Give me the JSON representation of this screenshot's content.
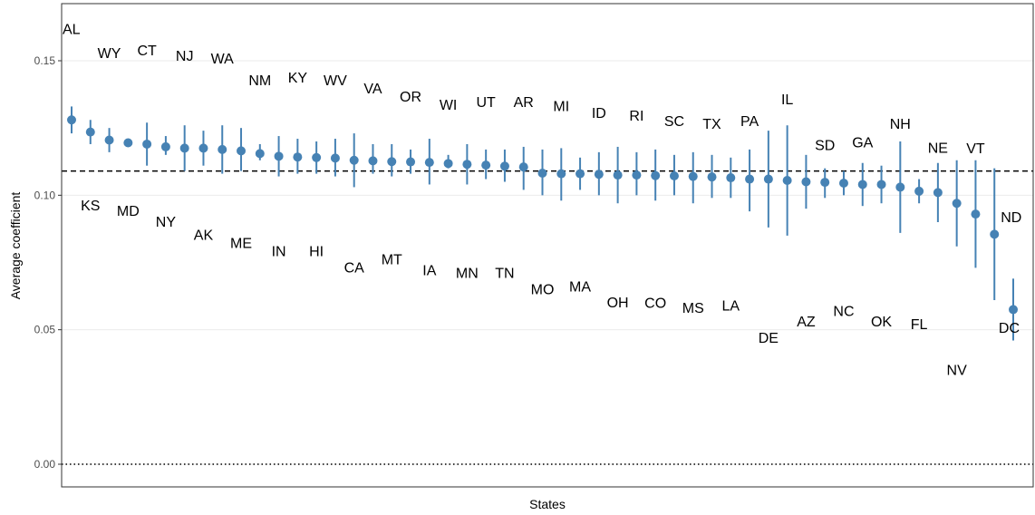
{
  "chart_data": {
    "type": "scatter",
    "xlabel": "States",
    "ylabel": "Average coefficient",
    "ylim": [
      -0.02,
      0.172
    ],
    "yticks": [
      0.0,
      0.05,
      0.1,
      0.15
    ],
    "ytick_labels": [
      "0.00",
      "0.05",
      "0.10",
      "0.15"
    ],
    "reference_lines": [
      {
        "y": 0.109,
        "style": "dashed"
      },
      {
        "y": 0.0,
        "style": "dotted"
      }
    ],
    "grid": true,
    "colors": {
      "point": "#4682b4",
      "errorbar": "#4682b4",
      "grid": "#ebebeb"
    },
    "points": [
      {
        "state": "AL",
        "mean": 0.128,
        "low": 0.123,
        "high": 0.133
      },
      {
        "state": "KS",
        "mean": 0.1235,
        "low": 0.119,
        "high": 0.128
      },
      {
        "state": "WY",
        "mean": 0.1205,
        "low": 0.116,
        "high": 0.125
      },
      {
        "state": "MD",
        "mean": 0.1195,
        "low": 0.118,
        "high": 0.121
      },
      {
        "state": "CT",
        "mean": 0.119,
        "low": 0.111,
        "high": 0.127
      },
      {
        "state": "NY",
        "mean": 0.118,
        "low": 0.115,
        "high": 0.122
      },
      {
        "state": "NJ",
        "mean": 0.1175,
        "low": 0.109,
        "high": 0.126
      },
      {
        "state": "AK",
        "mean": 0.1175,
        "low": 0.111,
        "high": 0.124
      },
      {
        "state": "WA",
        "mean": 0.117,
        "low": 0.108,
        "high": 0.126
      },
      {
        "state": "ME",
        "mean": 0.1165,
        "low": 0.109,
        "high": 0.125
      },
      {
        "state": "NM",
        "mean": 0.1155,
        "low": 0.113,
        "high": 0.119
      },
      {
        "state": "IN",
        "mean": 0.1145,
        "low": 0.107,
        "high": 0.122
      },
      {
        "state": "KY",
        "mean": 0.1142,
        "low": 0.108,
        "high": 0.121
      },
      {
        "state": "HI",
        "mean": 0.114,
        "low": 0.108,
        "high": 0.12
      },
      {
        "state": "WV",
        "mean": 0.1138,
        "low": 0.107,
        "high": 0.121
      },
      {
        "state": "CA",
        "mean": 0.113,
        "low": 0.103,
        "high": 0.123
      },
      {
        "state": "VA",
        "mean": 0.1128,
        "low": 0.108,
        "high": 0.119
      },
      {
        "state": "MT",
        "mean": 0.1125,
        "low": 0.107,
        "high": 0.119
      },
      {
        "state": "OR",
        "mean": 0.1124,
        "low": 0.108,
        "high": 0.117
      },
      {
        "state": "IA",
        "mean": 0.1122,
        "low": 0.104,
        "high": 0.121
      },
      {
        "state": "WI",
        "mean": 0.1118,
        "low": 0.11,
        "high": 0.115
      },
      {
        "state": "MN",
        "mean": 0.1115,
        "low": 0.104,
        "high": 0.119
      },
      {
        "state": "UT",
        "mean": 0.1112,
        "low": 0.106,
        "high": 0.117
      },
      {
        "state": "TN",
        "mean": 0.1108,
        "low": 0.105,
        "high": 0.117
      },
      {
        "state": "AR",
        "mean": 0.1105,
        "low": 0.102,
        "high": 0.118
      },
      {
        "state": "MO",
        "mean": 0.1082,
        "low": 0.1,
        "high": 0.117
      },
      {
        "state": "MI",
        "mean": 0.108,
        "low": 0.098,
        "high": 0.1175
      },
      {
        "state": "MA",
        "mean": 0.108,
        "low": 0.102,
        "high": 0.114
      },
      {
        "state": "ID",
        "mean": 0.1078,
        "low": 0.1,
        "high": 0.116
      },
      {
        "state": "OH",
        "mean": 0.1075,
        "low": 0.097,
        "high": 0.118
      },
      {
        "state": "RI",
        "mean": 0.1075,
        "low": 0.1,
        "high": 0.116
      },
      {
        "state": "CO",
        "mean": 0.1073,
        "low": 0.098,
        "high": 0.117
      },
      {
        "state": "SC",
        "mean": 0.1072,
        "low": 0.1,
        "high": 0.115
      },
      {
        "state": "MS",
        "mean": 0.107,
        "low": 0.097,
        "high": 0.116
      },
      {
        "state": "TX",
        "mean": 0.1068,
        "low": 0.099,
        "high": 0.115
      },
      {
        "state": "LA",
        "mean": 0.1065,
        "low": 0.099,
        "high": 0.114
      },
      {
        "state": "PA",
        "mean": 0.106,
        "low": 0.094,
        "high": 0.117
      },
      {
        "state": "DE",
        "mean": 0.106,
        "low": 0.088,
        "high": 0.124
      },
      {
        "state": "IL",
        "mean": 0.1055,
        "low": 0.085,
        "high": 0.126
      },
      {
        "state": "AZ",
        "mean": 0.105,
        "low": 0.095,
        "high": 0.115
      },
      {
        "state": "SD",
        "mean": 0.1048,
        "low": 0.099,
        "high": 0.11
      },
      {
        "state": "NC",
        "mean": 0.1045,
        "low": 0.1,
        "high": 0.109
      },
      {
        "state": "GA",
        "mean": 0.104,
        "low": 0.096,
        "high": 0.112
      },
      {
        "state": "OK",
        "mean": 0.104,
        "low": 0.097,
        "high": 0.111
      },
      {
        "state": "NH",
        "mean": 0.103,
        "low": 0.086,
        "high": 0.12
      },
      {
        "state": "FL",
        "mean": 0.1015,
        "low": 0.097,
        "high": 0.106
      },
      {
        "state": "NE",
        "mean": 0.101,
        "low": 0.09,
        "high": 0.112
      },
      {
        "state": "NV",
        "mean": 0.097,
        "low": 0.081,
        "high": 0.113
      },
      {
        "state": "VT",
        "mean": 0.093,
        "low": 0.073,
        "high": 0.113
      },
      {
        "state": "ND",
        "mean": 0.0855,
        "low": 0.061,
        "high": 0.11
      },
      {
        "state": "DC",
        "mean": 0.0575,
        "low": 0.046,
        "high": 0.069
      }
    ]
  }
}
